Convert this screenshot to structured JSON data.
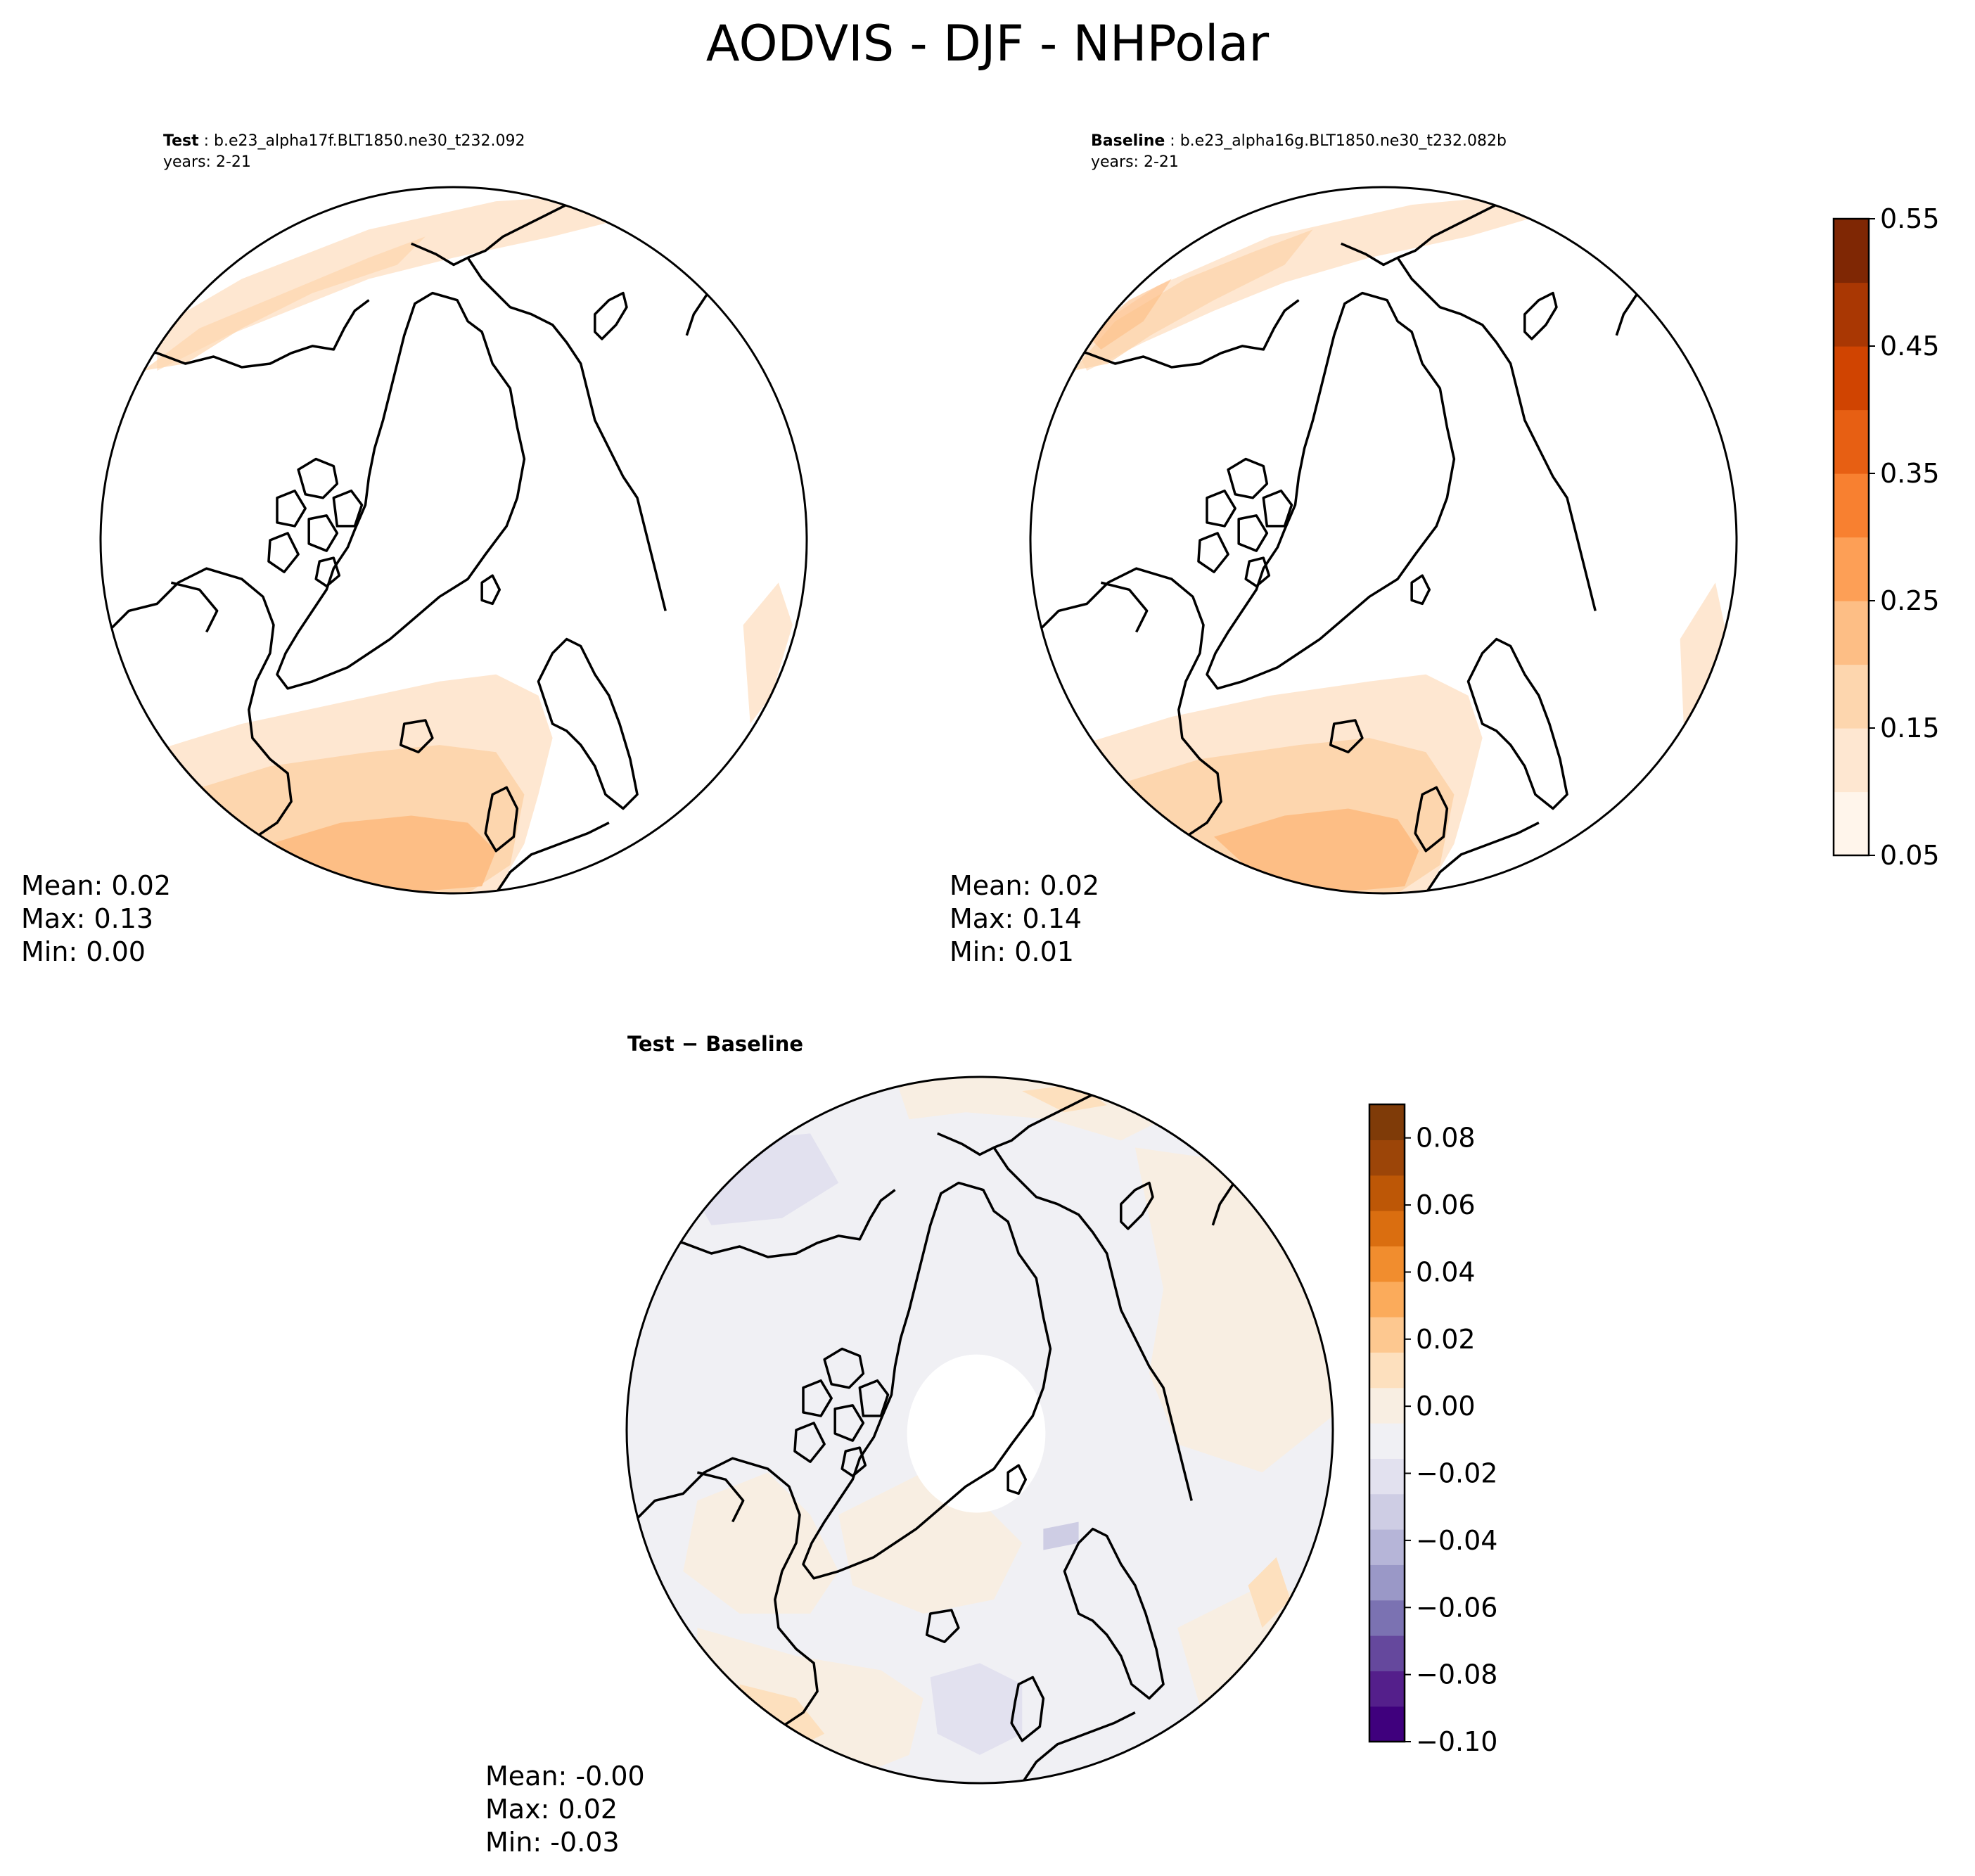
{
  "title": "AODVIS - DJF - NHPolar",
  "panels": {
    "test": {
      "label": "Test",
      "case": "b.e23_alpha17f.BLT1850.ne30_t232.092",
      "years": "years: 2-21",
      "stats": {
        "mean": "Mean:  0.02",
        "max": "Max:  0.13",
        "min": "Min:  0.00"
      }
    },
    "baseline": {
      "label": "Baseline",
      "case": "b.e23_alpha16g.BLT1850.ne30_t232.082b",
      "years": "years: 2-21",
      "stats": {
        "mean": "Mean:  0.02",
        "max": "Max:  0.14",
        "min": "Min:  0.01"
      }
    },
    "diff": {
      "label_test": "Test",
      "label_sep": " − ",
      "label_base": "Baseline",
      "stats": {
        "mean": "Mean: -0.00",
        "max": "Max:  0.02",
        "min": "Min: -0.03"
      }
    }
  },
  "colorbars": {
    "main": {
      "min": 0.05,
      "max": 0.55,
      "ticks": [
        "0.05",
        "0.15",
        "0.25",
        "0.35",
        "0.45",
        "0.55"
      ],
      "colors": [
        "#fff5eb",
        "#fee7d1",
        "#fdd6ae",
        "#fdbe85",
        "#fd9f56",
        "#f88030",
        "#e75f13",
        "#d04401",
        "#a93703",
        "#7f2704"
      ]
    },
    "diff": {
      "min": -0.1,
      "max": 0.09,
      "ticks": [
        "0.08",
        "0.06",
        "0.04",
        "0.02",
        "0.00",
        "−0.02",
        "−0.04",
        "−0.06",
        "−0.08",
        "−0.10"
      ],
      "colors": [
        "#3f007d",
        "#541f8b",
        "#65489d",
        "#7b72b2",
        "#9a98c7",
        "#b6b5d8",
        "#cecde4",
        "#e2e1ef",
        "#f0f0f4",
        "#f8eee2",
        "#fde0be",
        "#fdc890",
        "#fbab5b",
        "#f18d2e",
        "#da6e10",
        "#bd5706",
        "#9c4508",
        "#7f3b08"
      ]
    }
  },
  "chart_data": {
    "type": "heatmap",
    "variable": "AODVIS",
    "season": "DJF",
    "region": "NHPolar",
    "panels": [
      {
        "name": "Test",
        "mean": 0.02,
        "max": 0.13,
        "min": 0.0
      },
      {
        "name": "Baseline",
        "mean": 0.02,
        "max": 0.14,
        "min": 0.01
      },
      {
        "name": "Test - Baseline",
        "mean": -0.0,
        "max": 0.02,
        "min": -0.03
      }
    ],
    "colorbar_main_range": [
      0.05,
      0.55
    ],
    "colorbar_diff_range": [
      -0.1,
      0.09
    ]
  }
}
